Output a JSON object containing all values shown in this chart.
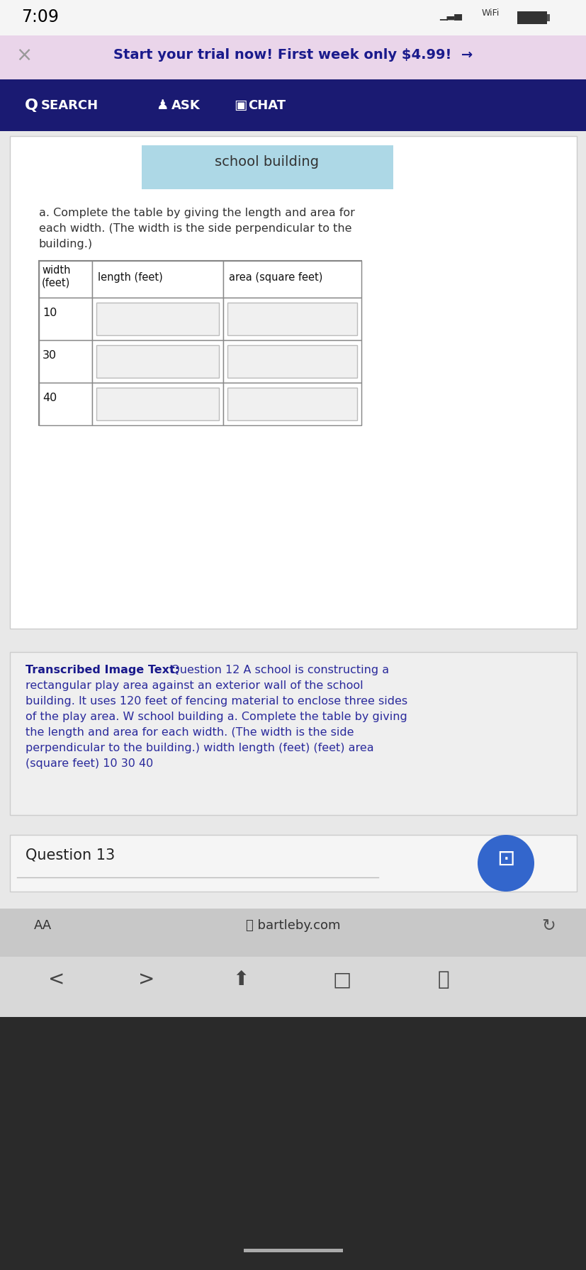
{
  "status_bar_time": "7:09",
  "status_bar_bg": "#f5f5f5",
  "status_bar_text_color": "#000000",
  "promo_bg": "#ead5ea",
  "promo_text": "Start your trial now! First week only $4.99!",
  "promo_text_color": "#1a1a8c",
  "promo_x_color": "#999999",
  "nav_bg": "#1a1a72",
  "nav_text_color": "#ffffff",
  "content_outer_bg": "#e8e8e8",
  "content_card_bg": "#ffffff",
  "content_card_border": "#cccccc",
  "school_building_box_color": "#add8e6",
  "school_building_text": "school building",
  "school_building_text_color": "#333333",
  "instruction_text_line1": "a. Complete the table by giving the length and area for",
  "instruction_text_line2": "each width. (The width is the side perpendicular to the",
  "instruction_text_line3": "building.)",
  "instruction_text_color": "#333333",
  "table_header_col1": "width\n(feet)",
  "table_header_col2": "length (feet)",
  "table_header_col3": "area (square feet)",
  "table_rows": [
    "10",
    "30",
    "40"
  ],
  "table_border_color": "#888888",
  "table_input_bg": "#f0f0f0",
  "table_input_border": "#bbbbbb",
  "transcribed_bg": "#efefef",
  "transcribed_border": "#cccccc",
  "transcribed_label": "Transcribed Image Text:",
  "transcribed_label_color": "#1a1a8c",
  "transcribed_lines": [
    "Question 12 A school is constructing a",
    "",
    "rectangular play area against an exterior wall of the school",
    "",
    "building. It uses 120 feet of fencing material to enclose three sides",
    "",
    "of the play area. W school building a. Complete the table by giving",
    "",
    "the length and area for each width. (The width is the side",
    "",
    "perpendicular to the building.) width length (feet) (feet) area",
    "",
    "(square feet) 10 30 40"
  ],
  "transcribed_text_color": "#2a2a9c",
  "question13_text": "Question 13",
  "question13_text_color": "#222222",
  "question13_bg": "#f5f5f5",
  "question13_border": "#cccccc",
  "chat_btn_color": "#3366cc",
  "bottom_bar_bg": "#c8c8c8",
  "bottom_bar_text": "bartleby.com",
  "bottom_bar_text_color": "#333333",
  "bottom_nav_bg": "#d8d8d8",
  "dark_bg": "#2a2a2a",
  "home_indicator_color": "#aaaaaa"
}
